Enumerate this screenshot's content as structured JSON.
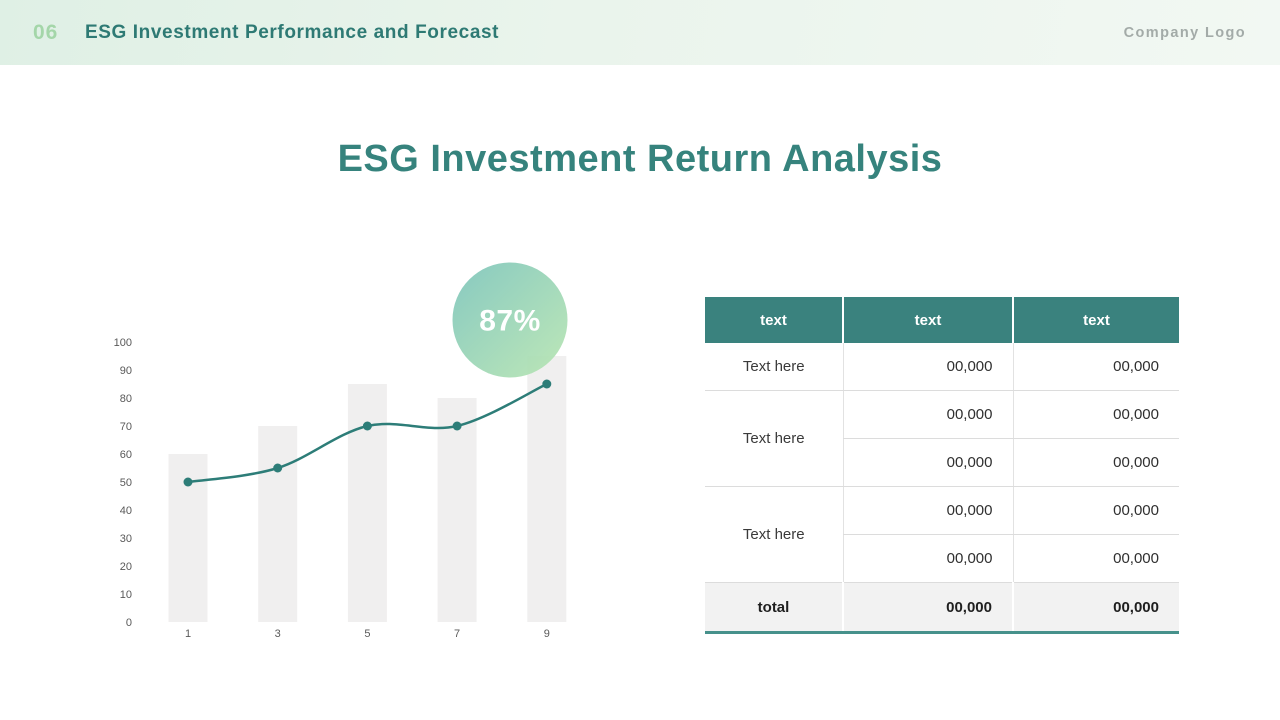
{
  "header": {
    "slide_number": "06",
    "title": "ESG Investment Performance and Forecast",
    "logo_text": "Company Logo"
  },
  "main": {
    "title": "ESG Investment Return Analysis"
  },
  "chart_data": {
    "type": "combo",
    "title": "",
    "xlabel": "",
    "ylabel": "",
    "categories": [
      "1",
      "3",
      "5",
      "7",
      "9"
    ],
    "series": [
      {
        "name": "bars",
        "type": "bar",
        "values": [
          60,
          70,
          85,
          80,
          95
        ],
        "color": "#f0efef"
      },
      {
        "name": "line",
        "type": "line",
        "values": [
          50,
          55,
          70,
          70,
          85
        ],
        "color": "#2d7d78"
      }
    ],
    "ylim": [
      0,
      100
    ],
    "ytick_step": 10,
    "grid": false,
    "legend": false,
    "axis_label_color": "#595959",
    "badge": {
      "value": "87%",
      "gradient": [
        "#7ec5bc",
        "#b9e6b2"
      ],
      "text_color": "#ffffff"
    }
  },
  "table": {
    "headers": [
      "text",
      "text",
      "text"
    ],
    "groups": [
      {
        "label": "Text here",
        "rows": [
          [
            "00,000",
            "00,000"
          ]
        ]
      },
      {
        "label": "Text here",
        "rows": [
          [
            "00,000",
            "00,000"
          ],
          [
            "00,000",
            "00,000"
          ]
        ]
      },
      {
        "label": "Text here",
        "rows": [
          [
            "00,000",
            "00,000"
          ],
          [
            "00,000",
            "00,000"
          ]
        ]
      }
    ],
    "total": {
      "label": "total",
      "values": [
        "00,000",
        "00,000"
      ]
    },
    "colors": {
      "header_bg": "#3a827e",
      "header_text": "#ffffff",
      "total_bg": "#f2f2f2",
      "accent_border": "#46918b"
    }
  }
}
